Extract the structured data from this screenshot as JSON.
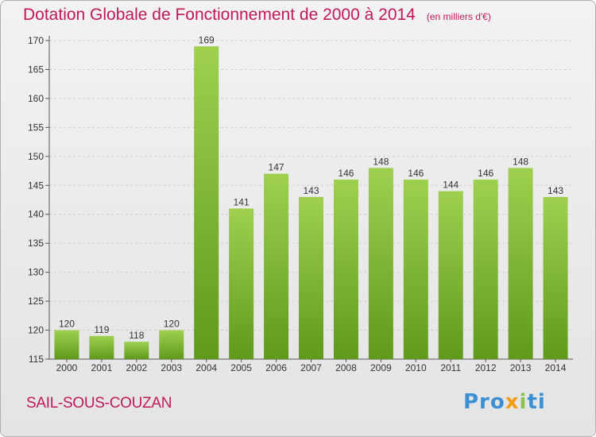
{
  "header": {
    "title": "Dotation Globale de Fonctionnement de 2000 à 2014",
    "subtitle": "(en milliers d'€)"
  },
  "footer": {
    "commune": "SAIL-SOUS-COUZAN",
    "logo": {
      "p1": "Pro",
      "p2": "x",
      "p3": "i",
      "p4": "ti"
    }
  },
  "colors": {
    "accent": "#c2185b",
    "bar_top": "#9fd04f",
    "bar_bottom": "#5f9a1b"
  },
  "chart_data": {
    "type": "bar",
    "title": "Dotation Globale de Fonctionnement de 2000 à 2014",
    "subtitle": "(en milliers d'€)",
    "xlabel": "",
    "ylabel": "",
    "categories": [
      "2000",
      "2001",
      "2002",
      "2003",
      "2004",
      "2005",
      "2006",
      "2007",
      "2008",
      "2009",
      "2010",
      "2011",
      "2012",
      "2013",
      "2014"
    ],
    "values": [
      120,
      119,
      118,
      120,
      169,
      141,
      147,
      143,
      146,
      148,
      146,
      144,
      146,
      148,
      143
    ],
    "ylim": [
      115,
      170
    ],
    "yticks": [
      115,
      120,
      125,
      130,
      135,
      140,
      145,
      150,
      155,
      160,
      165,
      170
    ],
    "grid": true,
    "legend": "none"
  }
}
